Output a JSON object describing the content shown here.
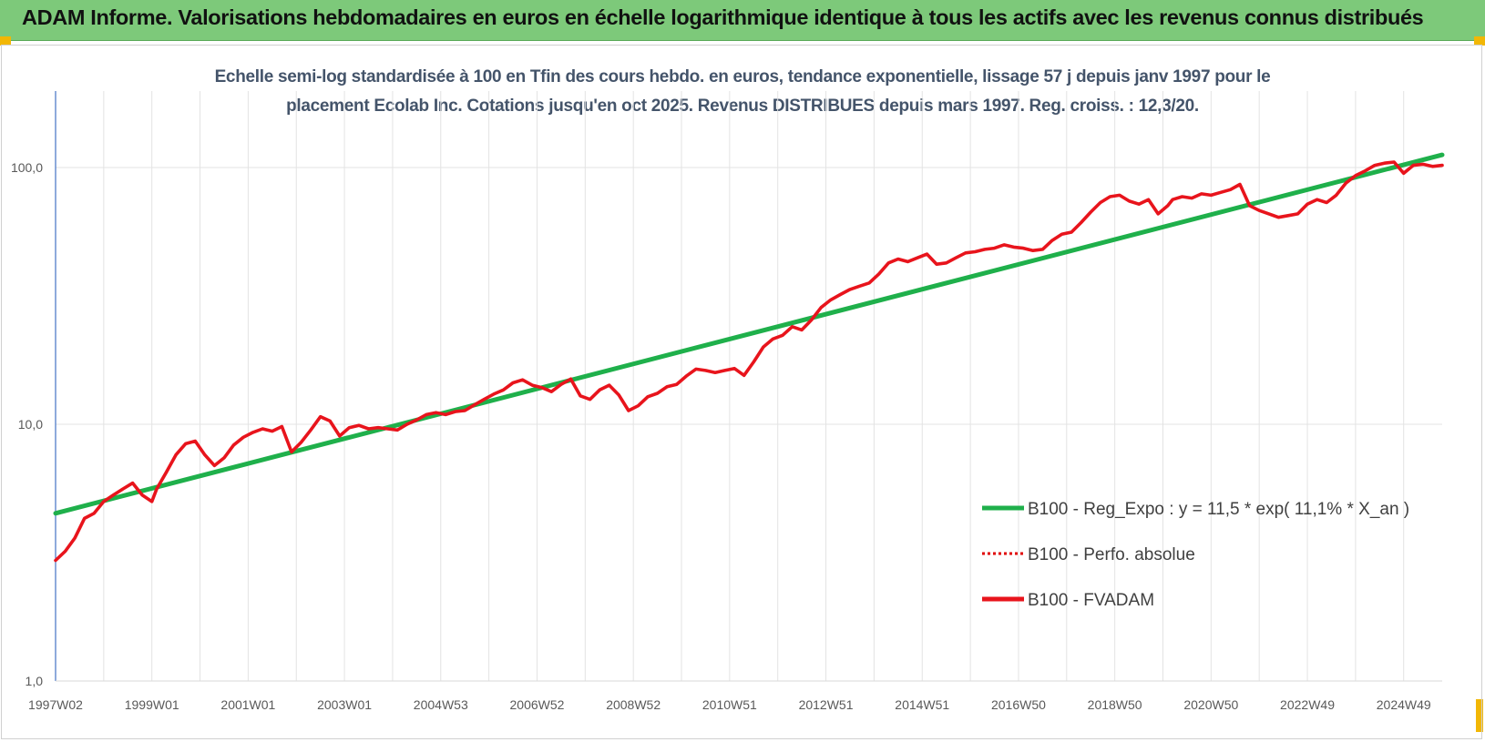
{
  "banner": {
    "title": "ADAM Informe. Valorisations hebdomadaires en euros en échelle logarithmique identique à tous les actifs avec les revenus connus distribués",
    "background": "#7dc97a"
  },
  "chart_data": {
    "type": "line",
    "title_lines": [
      "Echelle semi-log standardisée à 100 en Tfin des cours hebdo. en euros, tendance exponentielle, lissage 57 j depuis janv 1997 pour le",
      "placement Ecolab Inc. Cotations jusqu'en oct 2025. Revenus DISTRIBUES depuis mars 1997. Reg. croiss. : 12,3/20."
    ],
    "yscale": "log",
    "ylim": [
      1,
      180
    ],
    "yticks": [
      {
        "value": 1,
        "label": "1,0"
      },
      {
        "value": 10,
        "label": "10,0"
      },
      {
        "value": 100,
        "label": "100,0"
      }
    ],
    "xlim": [
      1997.0,
      2025.8
    ],
    "xticks": [
      {
        "value": 1997.0,
        "label": "1997W02"
      },
      {
        "value": 1999.0,
        "label": "1999W01"
      },
      {
        "value": 2001.0,
        "label": "2001W01"
      },
      {
        "value": 2003.0,
        "label": "2003W01"
      },
      {
        "value": 2005.0,
        "label": "2004W53"
      },
      {
        "value": 2007.0,
        "label": "2006W52"
      },
      {
        "value": 2009.0,
        "label": "2008W52"
      },
      {
        "value": 2011.0,
        "label": "2010W51"
      },
      {
        "value": 2013.0,
        "label": "2012W51"
      },
      {
        "value": 2015.0,
        "label": "2014W51"
      },
      {
        "value": 2017.0,
        "label": "2016W50"
      },
      {
        "value": 2019.0,
        "label": "2018W50"
      },
      {
        "value": 2021.0,
        "label": "2020W50"
      },
      {
        "value": 2023.0,
        "label": "2022W49"
      },
      {
        "value": 2025.0,
        "label": "2024W49"
      }
    ],
    "grid": {
      "vertical_every_years": 1,
      "horizontal_at": [
        10,
        100
      ]
    },
    "legend_position": "bottom-right",
    "series": [
      {
        "name": "B100 - Reg_Expo : y = 11,5 * exp( 11,1% *  X_an )",
        "style": "solid",
        "color": "#1fb04b",
        "x": [
          1997.0,
          2025.8
        ],
        "y": [
          4.5,
          112
        ]
      },
      {
        "name": "B100 - Perfo. absolue",
        "style": "dotted",
        "color": "#e00000",
        "x": [],
        "y": []
      },
      {
        "name": "B100 - FVADAM",
        "style": "solid",
        "color": "#e8141c",
        "x": [
          1997.0,
          1997.2,
          1997.4,
          1997.6,
          1997.8,
          1998.0,
          1998.2,
          1998.4,
          1998.6,
          1998.8,
          1999.0,
          1999.1,
          1999.3,
          1999.5,
          1999.7,
          1999.9,
          2000.1,
          2000.3,
          2000.5,
          2000.7,
          2000.9,
          2001.1,
          2001.3,
          2001.5,
          2001.7,
          2001.9,
          2002.1,
          2002.3,
          2002.5,
          2002.7,
          2002.9,
          2003.1,
          2003.3,
          2003.5,
          2003.7,
          2003.9,
          2004.1,
          2004.3,
          2004.5,
          2004.7,
          2004.9,
          2005.1,
          2005.3,
          2005.5,
          2005.7,
          2005.9,
          2006.1,
          2006.3,
          2006.5,
          2006.7,
          2006.9,
          2007.1,
          2007.3,
          2007.5,
          2007.7,
          2007.9,
          2008.1,
          2008.3,
          2008.5,
          2008.7,
          2008.9,
          2009.1,
          2009.3,
          2009.5,
          2009.7,
          2009.9,
          2010.1,
          2010.3,
          2010.5,
          2010.7,
          2010.9,
          2011.1,
          2011.3,
          2011.5,
          2011.7,
          2011.9,
          2012.1,
          2012.3,
          2012.5,
          2012.7,
          2012.9,
          2013.1,
          2013.3,
          2013.5,
          2013.7,
          2013.9,
          2014.1,
          2014.3,
          2014.5,
          2014.7,
          2014.9,
          2015.1,
          2015.3,
          2015.5,
          2015.7,
          2015.9,
          2016.1,
          2016.3,
          2016.5,
          2016.7,
          2016.9,
          2017.1,
          2017.3,
          2017.5,
          2017.7,
          2017.9,
          2018.1,
          2018.3,
          2018.5,
          2018.7,
          2018.9,
          2019.1,
          2019.3,
          2019.5,
          2019.7,
          2019.9,
          2020.1,
          2020.2,
          2020.4,
          2020.6,
          2020.8,
          2021.0,
          2021.2,
          2021.4,
          2021.6,
          2021.8,
          2022.0,
          2022.2,
          2022.4,
          2022.6,
          2022.8,
          2023.0,
          2023.2,
          2023.4,
          2023.6,
          2023.8,
          2024.0,
          2024.2,
          2024.4,
          2024.6,
          2024.8,
          2025.0,
          2025.2,
          2025.4,
          2025.6,
          2025.8
        ],
        "y": [
          2.95,
          3.2,
          3.6,
          4.3,
          4.5,
          5.0,
          5.3,
          5.6,
          5.9,
          5.3,
          5.0,
          5.6,
          6.5,
          7.6,
          8.4,
          8.6,
          7.6,
          6.9,
          7.4,
          8.3,
          8.9,
          9.3,
          9.6,
          9.4,
          9.8,
          7.8,
          8.5,
          9.5,
          10.7,
          10.3,
          9.0,
          9.7,
          9.9,
          9.6,
          9.7,
          9.6,
          9.5,
          10.0,
          10.4,
          10.9,
          11.1,
          10.9,
          11.2,
          11.3,
          11.9,
          12.5,
          13.1,
          13.6,
          14.5,
          14.9,
          14.2,
          13.9,
          13.4,
          14.3,
          15.0,
          12.9,
          12.5,
          13.6,
          14.2,
          13.0,
          11.3,
          11.8,
          12.8,
          13.2,
          14.0,
          14.3,
          15.4,
          16.4,
          16.2,
          15.9,
          16.2,
          16.5,
          15.5,
          17.5,
          20.0,
          21.5,
          22.2,
          24.0,
          23.3,
          25.5,
          28.5,
          30.5,
          32.0,
          33.5,
          34.5,
          35.5,
          38.5,
          42.5,
          44.0,
          43.0,
          44.5,
          46.0,
          42.0,
          42.5,
          44.5,
          46.5,
          47.0,
          48.0,
          48.5,
          50.0,
          49.0,
          48.5,
          47.5,
          48.0,
          52.0,
          55.0,
          56.0,
          61.0,
          67.0,
          73.0,
          77.0,
          78.0,
          74.0,
          72.0,
          75.0,
          66.0,
          71.0,
          75.0,
          77.0,
          76.0,
          79.0,
          78.0,
          80.0,
          82.0,
          86.0,
          71.0,
          68.0,
          66.0,
          64.0,
          65.0,
          66.0,
          72.0,
          75.0,
          73.0,
          78.0,
          87.0,
          93.0,
          97.0,
          102.0,
          104.0,
          105.0,
          95.0,
          102.0,
          103.0,
          101.0,
          102.0
        ]
      }
    ]
  }
}
